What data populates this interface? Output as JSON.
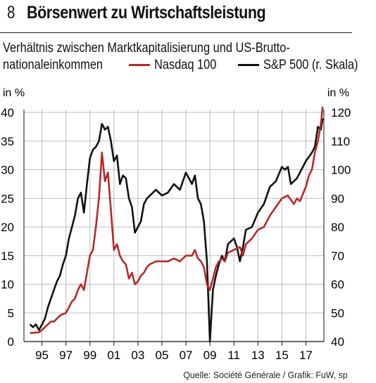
{
  "header": {
    "figure_number": "8",
    "title": "Börsenwert zu Wirtschaftsleistung",
    "subtitle": "Verhältnis zwischen Marktkapitalisierung und US-Brutto-",
    "subtitle_line2": "nationaleinkommen"
  },
  "source": "Quelle: Société Générale / Grafik: FuW, sp",
  "colors": {
    "nasdaq": "#b52a2a",
    "sp500": "#111111",
    "grid": "#bdbdbd"
  },
  "chart_data": {
    "type": "line",
    "title": "Börsenwert zu Wirtschaftsleistung",
    "left_axis": {
      "unit": "in %",
      "ylim": [
        0,
        40
      ],
      "ticks": [
        "0",
        "5",
        "10",
        "15",
        "20",
        "25",
        "30",
        "35",
        "40"
      ]
    },
    "right_axis": {
      "unit": "in %",
      "ylim": [
        40,
        120
      ],
      "ticks": [
        "40",
        "50",
        "60",
        "70",
        "80",
        "90",
        "100",
        "110",
        "120"
      ]
    },
    "x_ticks": [
      "95",
      "97",
      "99",
      "01",
      "03",
      "05",
      "07",
      "09",
      "11",
      "13",
      "15",
      "17"
    ],
    "x_tick_positions": [
      1995,
      1997,
      1999,
      2001,
      2003,
      2005,
      2007,
      2009,
      2011,
      2013,
      2015,
      2017
    ],
    "xlim": [
      1993.5,
      2018.5
    ],
    "grid": true,
    "series": [
      {
        "name": "Nasdaq 100",
        "axis": "left",
        "x": [
          1994.0,
          1994.25,
          1994.5,
          1994.75,
          1995.0,
          1995.25,
          1995.5,
          1995.75,
          1996.0,
          1996.25,
          1996.5,
          1996.75,
          1997.0,
          1997.25,
          1997.5,
          1997.75,
          1998.0,
          1998.25,
          1998.5,
          1998.75,
          1999.0,
          1999.25,
          1999.5,
          1999.75,
          2000.0,
          2000.25,
          2000.5,
          2000.75,
          2001.0,
          2001.25,
          2001.5,
          2001.75,
          2002.0,
          2002.25,
          2002.5,
          2002.75,
          2003.0,
          2003.25,
          2003.5,
          2003.75,
          2004.0,
          2004.5,
          2005.0,
          2005.5,
          2006.0,
          2006.5,
          2007.0,
          2007.5,
          2007.75,
          2008.0,
          2008.25,
          2008.5,
          2008.75,
          2009.0,
          2009.25,
          2009.5,
          2009.75,
          2010.0,
          2010.25,
          2010.5,
          2011.0,
          2011.5,
          2011.75,
          2012.0,
          2012.5,
          2013.0,
          2013.5,
          2014.0,
          2014.5,
          2015.0,
          2015.5,
          2016.0,
          2016.25,
          2016.5,
          2017.0,
          2017.25,
          2017.5,
          2017.75,
          2018.0,
          2018.25,
          2018.4
        ],
        "values": [
          1.5,
          1.5,
          1.6,
          1.6,
          2.0,
          2.5,
          3.0,
          3.5,
          3.5,
          4.0,
          4.5,
          4.8,
          5.0,
          6.0,
          7.0,
          7.5,
          9.0,
          10.0,
          9.0,
          12.0,
          15.0,
          16.0,
          20.0,
          25.0,
          33.0,
          28.0,
          29.5,
          23.0,
          16.0,
          17.0,
          15.0,
          14.0,
          13.5,
          11.0,
          12.0,
          10.0,
          10.5,
          11.5,
          12.0,
          13.0,
          13.5,
          14.0,
          14.0,
          14.0,
          14.5,
          14.0,
          15.0,
          15.0,
          16.0,
          14.5,
          14.0,
          13.0,
          10.0,
          9.0,
          11.0,
          13.0,
          14.0,
          14.5,
          14.0,
          15.5,
          16.0,
          16.5,
          15.0,
          17.0,
          18.0,
          19.5,
          20.0,
          22.0,
          23.5,
          25.0,
          25.5,
          24.0,
          25.0,
          24.5,
          27.0,
          29.0,
          30.0,
          33.0,
          35.0,
          38.0,
          41.0
        ]
      },
      {
        "name": "S&P 500 (r. Skala)",
        "axis": "right",
        "x": [
          1994.0,
          1994.25,
          1994.5,
          1994.75,
          1995.0,
          1995.25,
          1995.5,
          1995.75,
          1996.0,
          1996.25,
          1996.5,
          1996.75,
          1997.0,
          1997.25,
          1997.5,
          1997.75,
          1998.0,
          1998.25,
          1998.5,
          1998.75,
          1999.0,
          1999.25,
          1999.5,
          1999.75,
          2000.0,
          2000.25,
          2000.5,
          2000.75,
          2001.0,
          2001.25,
          2001.5,
          2001.75,
          2002.0,
          2002.25,
          2002.5,
          2002.75,
          2003.0,
          2003.25,
          2003.5,
          2003.75,
          2004.0,
          2004.5,
          2005.0,
          2005.5,
          2006.0,
          2006.5,
          2007.0,
          2007.25,
          2007.5,
          2007.75,
          2008.0,
          2008.25,
          2008.5,
          2008.75,
          2009.0,
          2009.25,
          2009.5,
          2009.75,
          2010.0,
          2010.25,
          2010.5,
          2011.0,
          2011.25,
          2011.5,
          2011.75,
          2012.0,
          2012.5,
          2013.0,
          2013.5,
          2014.0,
          2014.5,
          2015.0,
          2015.25,
          2015.5,
          2015.75,
          2016.0,
          2016.25,
          2016.5,
          2017.0,
          2017.5,
          2017.75,
          2018.0,
          2018.25,
          2018.4
        ],
        "values": [
          46.0,
          45.0,
          46.0,
          44.0,
          46.0,
          48.0,
          52.0,
          55.0,
          58.0,
          61.0,
          63.0,
          67.0,
          70.0,
          76.0,
          80.0,
          84.0,
          90.0,
          92.0,
          85.0,
          95.0,
          104.0,
          107.0,
          108.0,
          110.0,
          116.0,
          114.0,
          115.0,
          110.0,
          103.0,
          105.0,
          95.0,
          98.0,
          97.0,
          90.0,
          87.0,
          78.0,
          80.0,
          82.0,
          88.0,
          90.0,
          91.0,
          93.0,
          91.0,
          92.0,
          95.0,
          93.0,
          99.0,
          97.0,
          95.0,
          98.0,
          90.0,
          88.0,
          82.0,
          68.0,
          40.0,
          58.0,
          63.0,
          67.0,
          70.0,
          68.0,
          74.0,
          76.0,
          73.0,
          68.0,
          73.0,
          79.0,
          80.0,
          85.0,
          88.0,
          94.0,
          96.0,
          101.0,
          100.0,
          101.0,
          95.0,
          96.0,
          97.0,
          99.0,
          103.0,
          106.0,
          108.0,
          115.0,
          114.0,
          118.0
        ]
      }
    ]
  }
}
